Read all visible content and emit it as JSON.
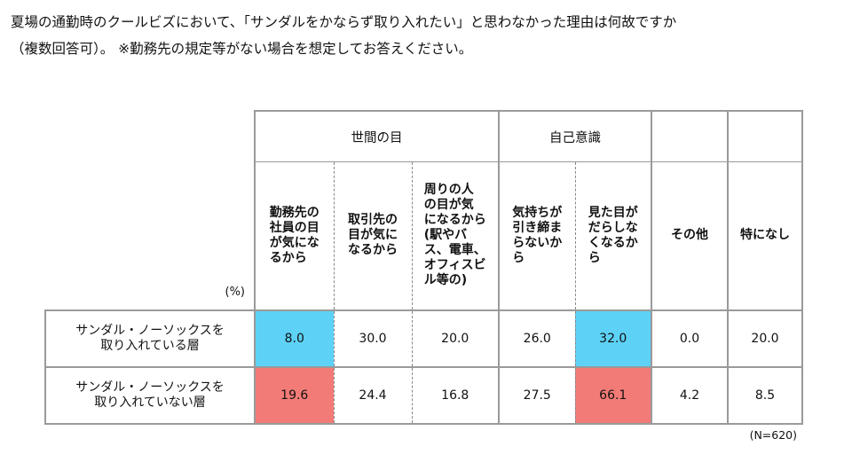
{
  "question": {
    "line1": "夏場の通勤時のクールビズにおいて、「サンダルをかならず取り入れたい」と思わなかった理由は何故ですか",
    "line2": "（複数回答可）。 ※勤務先の規定等がない場合を想定してお答えください。"
  },
  "table": {
    "unit_label": "(%)",
    "groups": [
      {
        "label": "世間の目"
      },
      {
        "label": "自己意識"
      }
    ],
    "columns": [
      {
        "label": "勤務先の\n社員の目\nが気にな\nるから"
      },
      {
        "label": "取引先の\n目が気に\nなるから"
      },
      {
        "label": "周りの人\nの目が気\nになるから\n(駅やバ\nス、電車、\nオフィスビ\nル等の)"
      },
      {
        "label": "気持ちが\n引き締ま\nらないか\nら"
      },
      {
        "label": "見た目が\nだらしな\nくなるか\nら"
      },
      {
        "label": "その他"
      },
      {
        "label": "特になし"
      }
    ],
    "rows": [
      {
        "label": "サンダル・ノーソックスを\n取り入れている層",
        "values": [
          "8.0",
          "30.0",
          "20.0",
          "26.0",
          "32.0",
          "0.0",
          "20.0"
        ]
      },
      {
        "label": "サンダル・ノーソックスを\n取り入れていない層",
        "values": [
          "19.6",
          "24.4",
          "16.8",
          "27.5",
          "66.1",
          "4.2",
          "8.5"
        ]
      }
    ],
    "highlight_colors": {
      "blue": "#5dd2f6",
      "red": "#f37b77"
    }
  },
  "sample_note": "(N=620)"
}
